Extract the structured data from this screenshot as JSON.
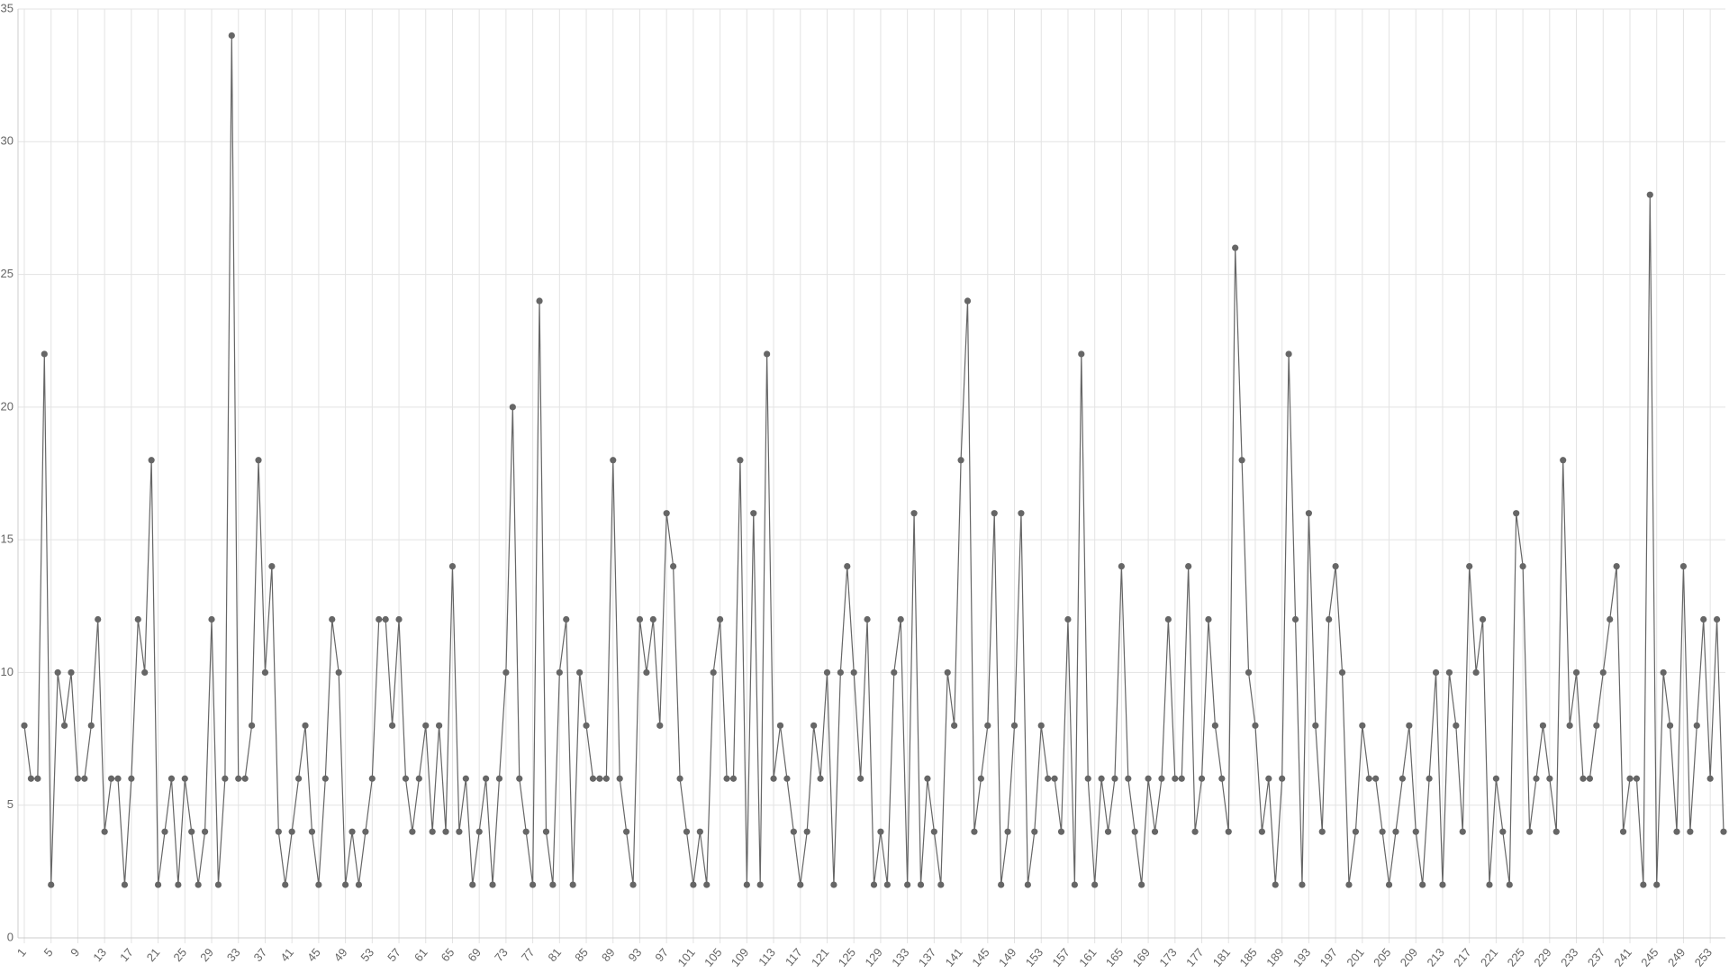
{
  "chart_data": {
    "type": "line",
    "color": "#666666",
    "grid": true,
    "categories": [
      1,
      null,
      null,
      null,
      5,
      null,
      null,
      null,
      9,
      null,
      null,
      null,
      13,
      null,
      null,
      null,
      17,
      null,
      null,
      null,
      21,
      null,
      null,
      null,
      25,
      null,
      null,
      null,
      29,
      null,
      null,
      null,
      33,
      null,
      null,
      null,
      37,
      null,
      null,
      null,
      41,
      null,
      null,
      null,
      45,
      null,
      null,
      null,
      49,
      null,
      null,
      null,
      53,
      null,
      null,
      null,
      57,
      null,
      null,
      null,
      61,
      null,
      null,
      null,
      65,
      null,
      null,
      null,
      69,
      null,
      null,
      null,
      73,
      null,
      null,
      null,
      77,
      null,
      null,
      null,
      81,
      null,
      null,
      null,
      85,
      null,
      null,
      null,
      89,
      null,
      null,
      null,
      93,
      null,
      null,
      null,
      97,
      null,
      null,
      null,
      101,
      null,
      null,
      null,
      105,
      null,
      null,
      null,
      109,
      null,
      null,
      null,
      113,
      null,
      null,
      null,
      117,
      null,
      null,
      null,
      121,
      null,
      null,
      null,
      125,
      null,
      null,
      null,
      129,
      null,
      null,
      null,
      133,
      null,
      null,
      null,
      137,
      null,
      null,
      null,
      141,
      null,
      null,
      null,
      145,
      null,
      null,
      null,
      149,
      null,
      null,
      null,
      153,
      null,
      null,
      null,
      157,
      null,
      null,
      null,
      161,
      null,
      null,
      null,
      165,
      null,
      null,
      null,
      169,
      null,
      null,
      null,
      173,
      null,
      null,
      null,
      177,
      null,
      null,
      null,
      181,
      null,
      null,
      null,
      185,
      null,
      null,
      null,
      189,
      null,
      null,
      null,
      193,
      null,
      null,
      null,
      197,
      null,
      null,
      null,
      201,
      null,
      null,
      null,
      205,
      null,
      null,
      null,
      209,
      null,
      null,
      null,
      213,
      null,
      null,
      null,
      217,
      null,
      null,
      null,
      221,
      null,
      null,
      null,
      225,
      null,
      null,
      null,
      229,
      null,
      null,
      null,
      233,
      null,
      null,
      null,
      237,
      null,
      null,
      null,
      241,
      null,
      null,
      null,
      245,
      null,
      null,
      null,
      249,
      null,
      null,
      null,
      253,
      null,
      null
    ],
    "values": [
      8,
      6,
      6,
      22,
      2,
      10,
      8,
      10,
      6,
      6,
      8,
      12,
      4,
      6,
      6,
      2,
      6,
      12,
      10,
      18,
      2,
      4,
      6,
      2,
      6,
      4,
      2,
      4,
      12,
      2,
      6,
      34,
      6,
      6,
      8,
      18,
      10,
      14,
      4,
      2,
      4,
      6,
      8,
      4,
      2,
      6,
      12,
      10,
      2,
      4,
      2,
      4,
      6,
      12,
      12,
      8,
      12,
      6,
      4,
      6,
      8,
      4,
      8,
      4,
      14,
      4,
      6,
      2,
      4,
      6,
      2,
      6,
      10,
      20,
      6,
      4,
      2,
      24,
      4,
      2,
      10,
      12,
      2,
      10,
      8,
      6,
      6,
      6,
      18,
      6,
      4,
      2,
      12,
      10,
      12,
      8,
      16,
      14,
      6,
      4,
      2,
      4,
      2,
      10,
      12,
      6,
      6,
      18,
      2,
      16,
      2,
      22,
      6,
      8,
      6,
      4,
      2,
      4,
      8,
      6,
      10,
      2,
      10,
      14,
      10,
      6,
      12,
      2,
      4,
      2,
      10,
      12,
      2,
      16,
      2,
      6,
      4,
      2,
      10,
      8,
      18,
      24,
      4,
      6,
      8,
      16,
      2,
      4,
      8,
      16,
      2,
      4,
      8,
      6,
      6,
      4,
      12,
      2,
      22,
      6,
      2,
      6,
      4,
      6,
      14,
      6,
      4,
      2,
      6,
      4,
      6,
      12,
      6,
      6,
      14,
      4,
      6,
      12,
      8,
      6,
      4,
      26,
      18,
      10,
      8,
      4,
      6,
      2,
      6,
      22,
      12,
      2,
      16,
      8,
      4,
      12,
      14,
      10,
      2,
      4,
      8,
      6,
      6,
      4,
      2,
      4,
      6,
      8,
      4,
      2,
      6,
      10,
      2,
      10,
      8,
      4,
      14,
      10,
      12,
      2,
      6,
      4,
      2,
      16,
      14,
      4,
      6,
      8,
      6,
      4,
      18,
      8,
      10,
      6,
      6,
      8,
      10,
      12,
      14,
      4,
      6,
      6,
      2,
      28,
      2,
      10,
      8,
      4,
      14,
      4,
      8,
      12,
      6,
      12,
      4
    ],
    "ylim": [
      0,
      35
    ],
    "yticks": [
      0,
      5,
      10,
      15,
      20,
      25,
      30,
      35
    ]
  }
}
